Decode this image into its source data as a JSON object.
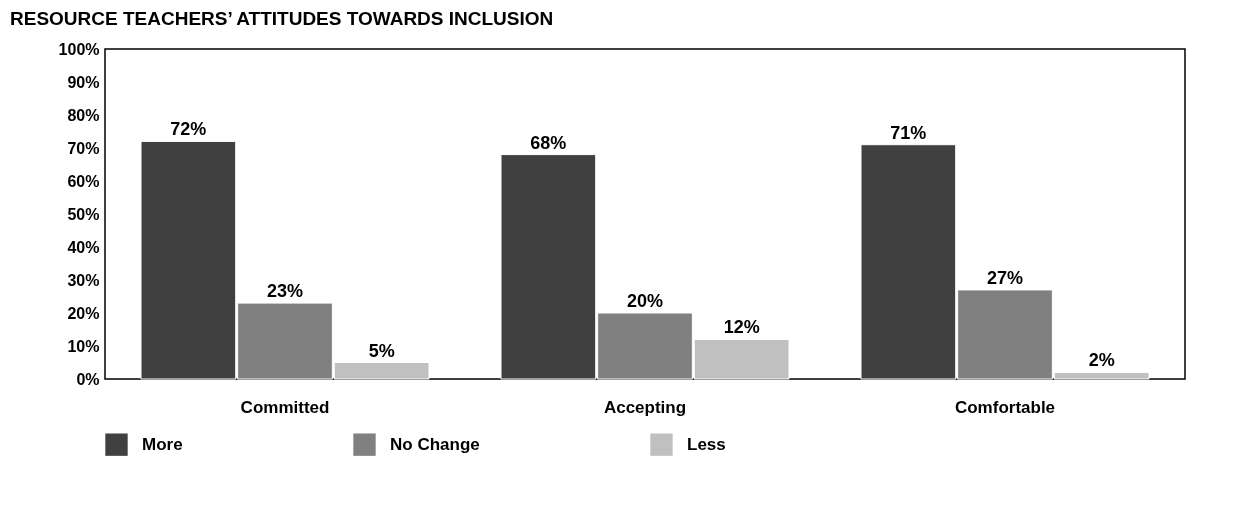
{
  "chart_data": {
    "type": "bar",
    "title": "RESOURCE TEACHERS’ ATTITUDES TOWARDS INCLUSION",
    "categories": [
      "Committed",
      "Accepting",
      "Comfortable"
    ],
    "series": [
      {
        "name": "More",
        "color": "#404040",
        "values": [
          72,
          68,
          71
        ],
        "value_labels": [
          "72%",
          "68%",
          "71%"
        ]
      },
      {
        "name": "No Change",
        "color": "#808080",
        "values": [
          23,
          20,
          27
        ],
        "value_labels": [
          "23%",
          "20%",
          "27%"
        ]
      },
      {
        "name": "Less",
        "color": "#c0c0c0",
        "values": [
          5,
          12,
          2
        ],
        "value_labels": [
          "5%",
          "12%",
          "2%"
        ]
      }
    ],
    "ylim": [
      0,
      100
    ],
    "yticks": [
      {
        "value": 0,
        "label": "0%"
      },
      {
        "value": 10,
        "label": "10%"
      },
      {
        "value": 20,
        "label": "20%"
      },
      {
        "value": 30,
        "label": "30%"
      },
      {
        "value": 40,
        "label": "40%"
      },
      {
        "value": 50,
        "label": "50%"
      },
      {
        "value": 60,
        "label": "60%"
      },
      {
        "value": 70,
        "label": "70%"
      },
      {
        "value": 80,
        "label": "80%"
      },
      {
        "value": 90,
        "label": "90%"
      },
      {
        "value": 100,
        "label": "100%"
      }
    ],
    "grid": false,
    "legend": "bottom"
  }
}
